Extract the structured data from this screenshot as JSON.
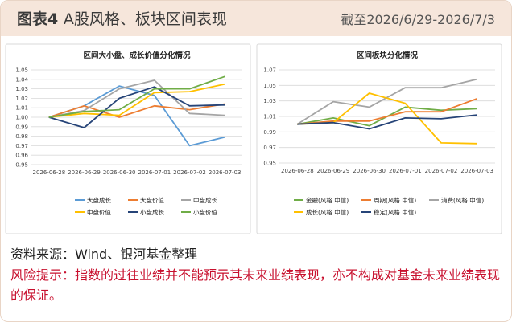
{
  "header": {
    "label": "图表4",
    "subtitle": "A股风格、板块区间表现",
    "date_range": "截至2026/6/29-2026/7/3"
  },
  "chart_data": [
    {
      "type": "line",
      "title": "区间大小盘、成长价值分化情况",
      "x": [
        "2026-06-28",
        "2026-06-29",
        "2026-06-30",
        "2026-07-01",
        "2026-07-02",
        "2026-07-03"
      ],
      "ylim": [
        0.95,
        1.05
      ],
      "yticks": [
        "0.95",
        "0.96",
        "0.97",
        "0.98",
        "0.99",
        "1.00",
        "1.01",
        "1.02",
        "1.03",
        "1.04",
        "1.05"
      ],
      "grid": true,
      "legend": "bottom",
      "series": [
        {
          "name": "大盘成长",
          "color": "#5b9bd5",
          "values": [
            1.0,
            1.012,
            1.033,
            1.023,
            0.97,
            0.979
          ]
        },
        {
          "name": "大盘价值",
          "color": "#ed7d31",
          "values": [
            1.0,
            1.012,
            1.0,
            1.012,
            1.008,
            1.014
          ]
        },
        {
          "name": "中盘成长",
          "color": "#a5a5a5",
          "values": [
            1.0,
            1.007,
            1.03,
            1.039,
            1.004,
            1.002
          ]
        },
        {
          "name": "中盘价值",
          "color": "#ffc000",
          "values": [
            1.0,
            1.004,
            1.002,
            1.026,
            1.027,
            1.035
          ]
        },
        {
          "name": "小盘成长",
          "color": "#264478",
          "values": [
            1.0,
            0.989,
            1.02,
            1.032,
            1.012,
            1.013
          ]
        },
        {
          "name": "小盘价值",
          "color": "#70ad47",
          "values": [
            1.0,
            1.006,
            1.008,
            1.03,
            1.03,
            1.043
          ]
        }
      ]
    },
    {
      "type": "line",
      "title": "区间板块分化情况",
      "x": [
        "2026-06-28",
        "2026-06-29",
        "2026-06-30",
        "2026-07-01",
        "2026-07-02",
        "2026-07-03"
      ],
      "ylim": [
        0.95,
        1.07
      ],
      "yticks": [
        "0.95",
        "0.97",
        "0.99",
        "1.01",
        "1.03",
        "1.05",
        "1.07"
      ],
      "grid": true,
      "legend": "bottom",
      "series": [
        {
          "name": "金融(风格.中信)",
          "color": "#70ad47",
          "values": [
            1.0,
            1.008,
            0.998,
            1.022,
            1.018,
            1.02
          ]
        },
        {
          "name": "周期(风格.中信)",
          "color": "#ed7d31",
          "values": [
            1.0,
            1.004,
            1.004,
            1.016,
            1.016,
            1.033
          ]
        },
        {
          "name": "消费(风格.中信)",
          "color": "#a5a5a5",
          "values": [
            1.0,
            1.029,
            1.022,
            1.047,
            1.047,
            1.058
          ]
        },
        {
          "name": "成长(风格.中信)",
          "color": "#ffc000",
          "values": [
            1.0,
            1.002,
            1.04,
            1.027,
            0.976,
            0.975
          ]
        },
        {
          "name": "稳定(风格.中信)",
          "color": "#264478",
          "values": [
            1.0,
            1.002,
            0.994,
            1.008,
            1.007,
            1.012
          ]
        }
      ]
    }
  ],
  "notes": {
    "source": "资料来源：Wind、银河基金整理",
    "risk": "风险提示：指数的过往业绩并不能预示其未来业绩表现，亦不构成对基金未来业绩表现的保证。"
  }
}
